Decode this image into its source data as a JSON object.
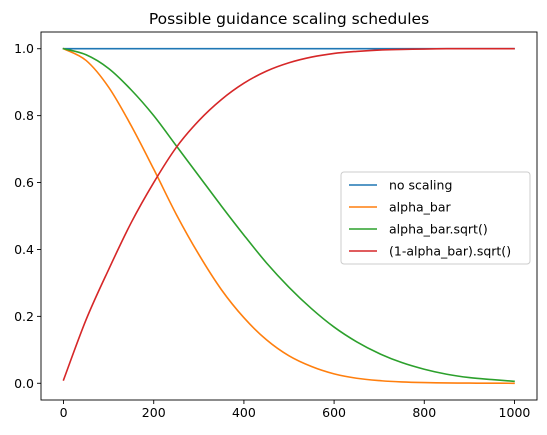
{
  "chart_data": {
    "type": "line",
    "title": "Possible guidance scaling schedules",
    "xlabel": "",
    "ylabel": "",
    "xlim": [
      -50,
      1050
    ],
    "ylim": [
      -0.05,
      1.05
    ],
    "xticks": [
      0,
      200,
      400,
      600,
      800,
      1000
    ],
    "xtick_labels": [
      "0",
      "200",
      "400",
      "600",
      "800",
      "1000"
    ],
    "yticks": [
      0.0,
      0.2,
      0.4,
      0.6,
      0.8,
      1.0
    ],
    "ytick_labels": [
      "0.0",
      "0.2",
      "0.4",
      "0.6",
      "0.8",
      "1.0"
    ],
    "grid": false,
    "legend_position": "center-right",
    "x": [
      0,
      50,
      100,
      150,
      200,
      250,
      300,
      350,
      400,
      450,
      500,
      550,
      600,
      650,
      700,
      750,
      800,
      850,
      900,
      950,
      999
    ],
    "series": [
      {
        "name": "no scaling",
        "color": "#1f77b4",
        "values": [
          1.0,
          1.0,
          1.0,
          1.0,
          1.0,
          1.0,
          1.0,
          1.0,
          1.0,
          1.0,
          1.0,
          1.0,
          1.0,
          1.0,
          1.0,
          1.0,
          1.0,
          1.0,
          1.0,
          1.0,
          1.0
        ]
      },
      {
        "name": "alpha_bar",
        "color": "#ff7f0e",
        "values": [
          1.0,
          0.965,
          0.885,
          0.77,
          0.64,
          0.505,
          0.385,
          0.28,
          0.196,
          0.13,
          0.082,
          0.05,
          0.028,
          0.015,
          0.008,
          0.004,
          0.002,
          0.001,
          0.0005,
          0.0002,
          0.0
        ]
      },
      {
        "name": "alpha_bar.sqrt()",
        "color": "#2ca02c",
        "values": [
          1.0,
          0.982,
          0.941,
          0.877,
          0.8,
          0.71,
          0.62,
          0.53,
          0.443,
          0.36,
          0.287,
          0.223,
          0.168,
          0.124,
          0.089,
          0.062,
          0.042,
          0.027,
          0.017,
          0.011,
          0.006
        ]
      },
      {
        "name": "(1-alpha_bar).sqrt()",
        "color": "#d62728",
        "values": [
          0.01,
          0.19,
          0.34,
          0.48,
          0.6,
          0.705,
          0.785,
          0.848,
          0.897,
          0.933,
          0.958,
          0.975,
          0.986,
          0.992,
          0.996,
          0.998,
          0.999,
          1.0,
          1.0,
          1.0,
          1.0
        ]
      }
    ]
  }
}
